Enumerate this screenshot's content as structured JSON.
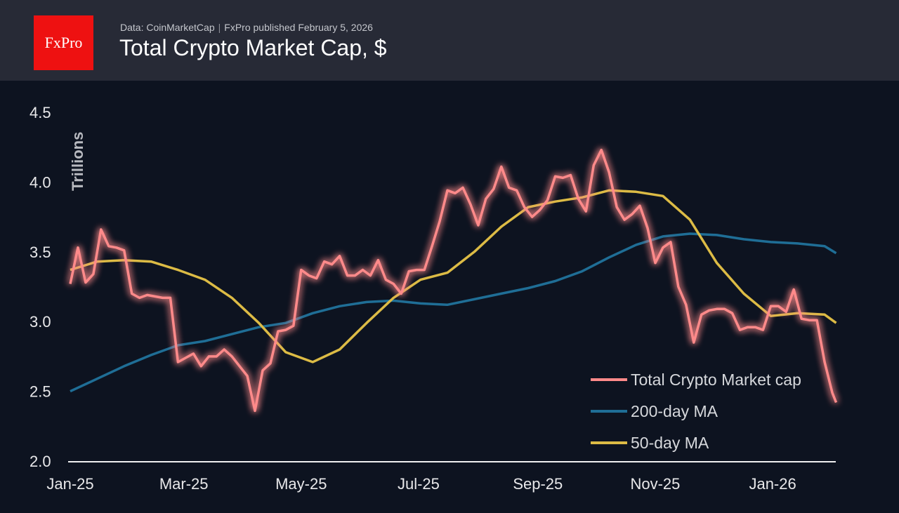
{
  "header": {
    "logo_text": "FxPro",
    "source": "Data: CoinMarketCap",
    "published": "FxPro published February 5, 2026",
    "title": "Total Crypto Market Cap, $"
  },
  "chart_data": {
    "type": "line",
    "title": "Total Crypto Market Cap, $",
    "ylabel": "Trillions",
    "xlabel": "",
    "ylim": [
      2.0,
      4.5
    ],
    "yticks": [
      "2.0",
      "2.5",
      "3.0",
      "3.5",
      "4.0",
      "4.5"
    ],
    "xlim": [
      "2025-01-01",
      "2026-02-05"
    ],
    "xticks": [
      {
        "date": "2025-01-01",
        "label": "Jan-25"
      },
      {
        "date": "2025-03-01",
        "label": "Mar-25"
      },
      {
        "date": "2025-05-01",
        "label": "May-25"
      },
      {
        "date": "2025-07-01",
        "label": "Jul-25"
      },
      {
        "date": "2025-09-01",
        "label": "Sep-25"
      },
      {
        "date": "2025-11-01",
        "label": "Nov-25"
      },
      {
        "date": "2026-01-01",
        "label": "Jan-26"
      }
    ],
    "grid": false,
    "legend": "bottom-right",
    "series": [
      {
        "name": "Total Crypto Market cap",
        "color": "#ff8a8a",
        "glow": true,
        "x": [
          "2025-01-01",
          "2025-01-05",
          "2025-01-09",
          "2025-01-13",
          "2025-01-17",
          "2025-01-21",
          "2025-01-25",
          "2025-01-29",
          "2025-02-02",
          "2025-02-06",
          "2025-02-10",
          "2025-02-14",
          "2025-02-18",
          "2025-02-22",
          "2025-02-26",
          "2025-03-02",
          "2025-03-06",
          "2025-03-10",
          "2025-03-14",
          "2025-03-18",
          "2025-03-22",
          "2025-03-26",
          "2025-03-30",
          "2025-04-03",
          "2025-04-07",
          "2025-04-11",
          "2025-04-15",
          "2025-04-19",
          "2025-04-23",
          "2025-04-27",
          "2025-05-01",
          "2025-05-05",
          "2025-05-09",
          "2025-05-13",
          "2025-05-17",
          "2025-05-21",
          "2025-05-25",
          "2025-05-29",
          "2025-06-02",
          "2025-06-06",
          "2025-06-10",
          "2025-06-14",
          "2025-06-18",
          "2025-06-22",
          "2025-06-26",
          "2025-06-30",
          "2025-07-04",
          "2025-07-08",
          "2025-07-12",
          "2025-07-16",
          "2025-07-20",
          "2025-07-24",
          "2025-07-28",
          "2025-08-01",
          "2025-08-05",
          "2025-08-09",
          "2025-08-13",
          "2025-08-17",
          "2025-08-21",
          "2025-08-25",
          "2025-08-29",
          "2025-09-02",
          "2025-09-06",
          "2025-09-10",
          "2025-09-14",
          "2025-09-18",
          "2025-09-22",
          "2025-09-26",
          "2025-09-30",
          "2025-10-04",
          "2025-10-08",
          "2025-10-12",
          "2025-10-16",
          "2025-10-20",
          "2025-10-24",
          "2025-10-28",
          "2025-11-01",
          "2025-11-05",
          "2025-11-09",
          "2025-11-13",
          "2025-11-17",
          "2025-11-21",
          "2025-11-25",
          "2025-11-29",
          "2025-12-03",
          "2025-12-07",
          "2025-12-11",
          "2025-12-15",
          "2025-12-19",
          "2025-12-23",
          "2025-12-27",
          "2025-12-31",
          "2026-01-04",
          "2026-01-08",
          "2026-01-12",
          "2026-01-16",
          "2026-01-20",
          "2026-01-24",
          "2026-01-28",
          "2026-02-01",
          "2026-02-03"
        ],
        "values": [
          3.27,
          3.53,
          3.28,
          3.34,
          3.66,
          3.54,
          3.53,
          3.51,
          3.2,
          3.17,
          3.19,
          3.18,
          3.17,
          3.17,
          2.71,
          2.74,
          2.77,
          2.68,
          2.75,
          2.75,
          2.8,
          2.75,
          2.68,
          2.61,
          2.36,
          2.65,
          2.7,
          2.93,
          2.94,
          2.97,
          3.37,
          3.33,
          3.31,
          3.43,
          3.41,
          3.47,
          3.33,
          3.33,
          3.37,
          3.33,
          3.44,
          3.3,
          3.27,
          3.2,
          3.36,
          3.37,
          3.37,
          3.54,
          3.72,
          3.94,
          3.92,
          3.96,
          3.84,
          3.69,
          3.88,
          3.95,
          4.11,
          3.96,
          3.94,
          3.82,
          3.75,
          3.8,
          3.87,
          4.04,
          4.03,
          4.05,
          3.88,
          3.79,
          4.12,
          4.23,
          4.07,
          3.82,
          3.73,
          3.77,
          3.83,
          3.67,
          3.42,
          3.53,
          3.57,
          3.25,
          3.12,
          2.85,
          3.05,
          3.08,
          3.09,
          3.09,
          3.06,
          2.94,
          2.96,
          2.96,
          2.94,
          3.11,
          3.11,
          3.07,
          3.23,
          3.02,
          3.01,
          3.01,
          2.71,
          2.49,
          2.42
        ]
      },
      {
        "name": "200-day MA",
        "color": "#1f6e96",
        "x": [
          "2025-01-01",
          "2025-01-15",
          "2025-01-29",
          "2025-02-12",
          "2025-02-26",
          "2025-03-12",
          "2025-03-26",
          "2025-04-09",
          "2025-04-23",
          "2025-05-07",
          "2025-05-21",
          "2025-06-04",
          "2025-06-18",
          "2025-07-02",
          "2025-07-16",
          "2025-07-30",
          "2025-08-13",
          "2025-08-27",
          "2025-09-10",
          "2025-09-24",
          "2025-10-08",
          "2025-10-22",
          "2025-11-05",
          "2025-11-19",
          "2025-12-03",
          "2025-12-17",
          "2025-12-31",
          "2026-01-14",
          "2026-01-28",
          "2026-02-03"
        ],
        "values": [
          2.5,
          2.59,
          2.68,
          2.76,
          2.83,
          2.86,
          2.91,
          2.96,
          2.99,
          3.06,
          3.11,
          3.14,
          3.15,
          3.13,
          3.12,
          3.16,
          3.2,
          3.24,
          3.29,
          3.36,
          3.46,
          3.55,
          3.61,
          3.63,
          3.62,
          3.59,
          3.57,
          3.56,
          3.54,
          3.49
        ]
      },
      {
        "name": "50-day MA",
        "color": "#dcbb45",
        "x": [
          "2025-01-01",
          "2025-01-15",
          "2025-01-29",
          "2025-02-12",
          "2025-02-26",
          "2025-03-12",
          "2025-03-26",
          "2025-04-09",
          "2025-04-23",
          "2025-05-07",
          "2025-05-21",
          "2025-06-04",
          "2025-06-18",
          "2025-07-02",
          "2025-07-16",
          "2025-07-30",
          "2025-08-13",
          "2025-08-27",
          "2025-09-10",
          "2025-09-24",
          "2025-10-08",
          "2025-10-22",
          "2025-11-05",
          "2025-11-19",
          "2025-12-03",
          "2025-12-17",
          "2025-12-31",
          "2026-01-14",
          "2026-01-28",
          "2026-02-03"
        ],
        "values": [
          3.37,
          3.43,
          3.44,
          3.43,
          3.37,
          3.3,
          3.17,
          2.99,
          2.78,
          2.71,
          2.8,
          2.99,
          3.17,
          3.3,
          3.35,
          3.5,
          3.68,
          3.82,
          3.86,
          3.89,
          3.94,
          3.93,
          3.9,
          3.73,
          3.42,
          3.2,
          3.04,
          3.06,
          3.05,
          2.99
        ]
      }
    ]
  }
}
